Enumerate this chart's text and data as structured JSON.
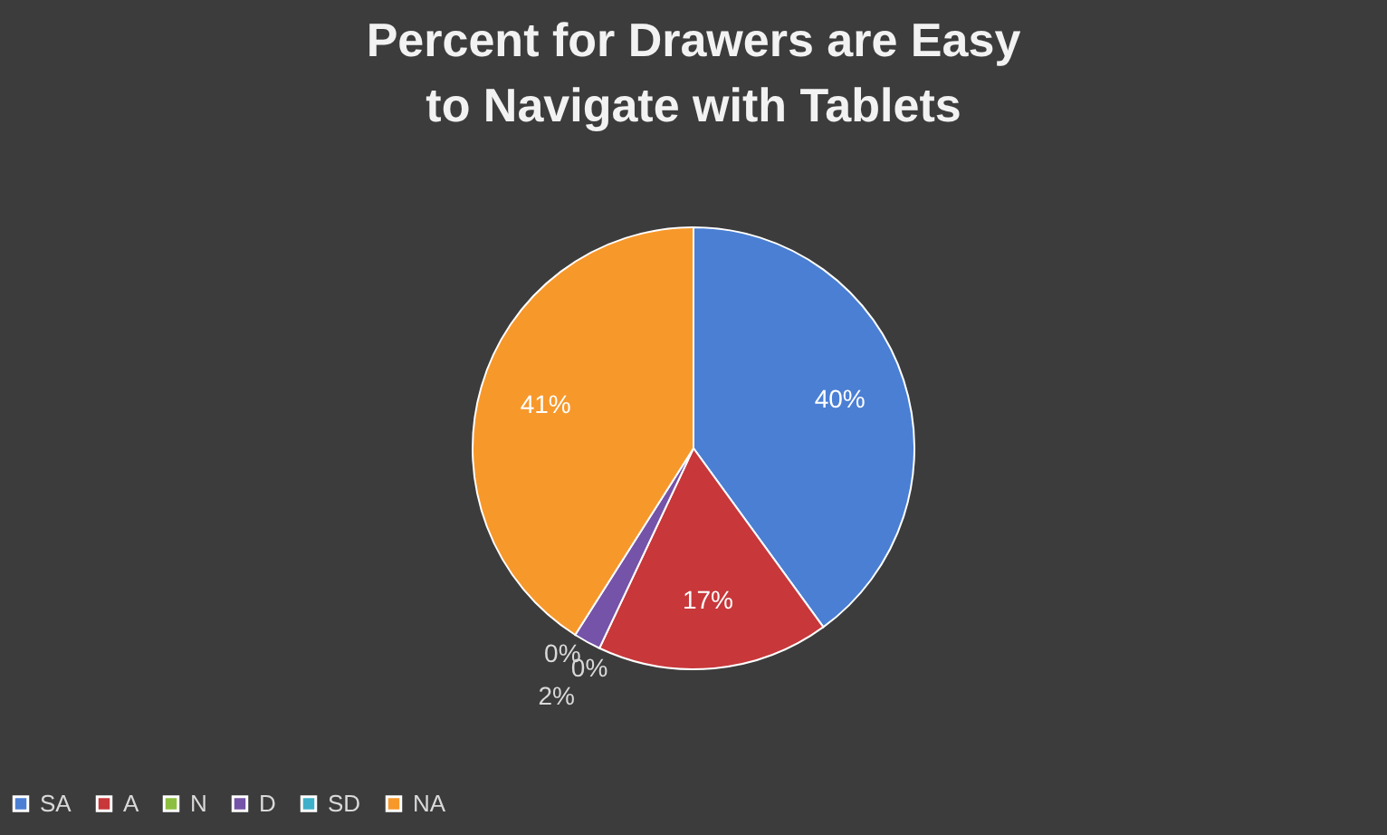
{
  "chart_data": {
    "type": "pie",
    "title": "Percent for Drawers are Easy to Navigate with Tablets",
    "categories": [
      "SA",
      "A",
      "N",
      "D",
      "SD",
      "NA"
    ],
    "values": [
      40,
      17,
      0,
      2,
      0,
      41
    ],
    "colors": [
      "#4a7fd4",
      "#c8373a",
      "#8cbf3f",
      "#7553a8",
      "#3fb0c9",
      "#f7982b"
    ],
    "value_labels": [
      "40%",
      "17%",
      "0%",
      "2%",
      "0%",
      "41%"
    ],
    "legend": "bottom"
  }
}
